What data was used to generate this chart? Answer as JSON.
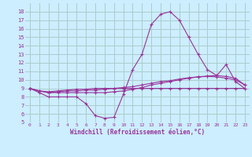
{
  "xlabel": "Windchill (Refroidissement éolien,°C)",
  "x": [
    0,
    1,
    2,
    3,
    4,
    5,
    6,
    7,
    8,
    9,
    10,
    11,
    12,
    13,
    14,
    15,
    16,
    17,
    18,
    19,
    20,
    21,
    22,
    23
  ],
  "line1": [
    9.0,
    8.5,
    8.0,
    8.0,
    8.0,
    8.0,
    7.2,
    5.8,
    5.5,
    5.6,
    8.3,
    11.2,
    13.0,
    16.5,
    17.7,
    18.0,
    17.0,
    15.0,
    13.0,
    11.2,
    10.5,
    11.8,
    9.8,
    9.0
  ],
  "line2": [
    9.0,
    8.7,
    8.5,
    8.5,
    8.5,
    8.5,
    8.5,
    8.5,
    8.5,
    8.6,
    8.7,
    8.9,
    9.1,
    9.4,
    9.6,
    9.8,
    10.0,
    10.2,
    10.35,
    10.45,
    10.5,
    10.4,
    10.2,
    9.4
  ],
  "line3": [
    9.0,
    8.7,
    8.5,
    8.6,
    8.7,
    8.7,
    8.8,
    8.8,
    8.9,
    9.0,
    9.1,
    9.2,
    9.4,
    9.6,
    9.8,
    9.9,
    10.1,
    10.25,
    10.35,
    10.4,
    10.35,
    10.2,
    10.0,
    9.4
  ],
  "line4": [
    9.0,
    8.7,
    8.6,
    8.7,
    8.8,
    8.9,
    8.9,
    9.0,
    9.0,
    9.0,
    9.0,
    9.0,
    9.0,
    9.0,
    9.0,
    9.0,
    9.0,
    9.0,
    9.0,
    9.0,
    9.0,
    9.0,
    9.0,
    9.0
  ],
  "line_color": "#993399",
  "bg_color": "#cceeff",
  "grid_color": "#aacccc",
  "ylim": [
    5,
    19
  ],
  "xlim": [
    -0.5,
    23.5
  ],
  "yticks": [
    5,
    6,
    7,
    8,
    9,
    10,
    11,
    12,
    13,
    14,
    15,
    16,
    17,
    18
  ],
  "xticks": [
    0,
    1,
    2,
    3,
    4,
    5,
    6,
    7,
    8,
    9,
    10,
    11,
    12,
    13,
    14,
    15,
    16,
    17,
    18,
    19,
    20,
    21,
    22,
    23
  ]
}
